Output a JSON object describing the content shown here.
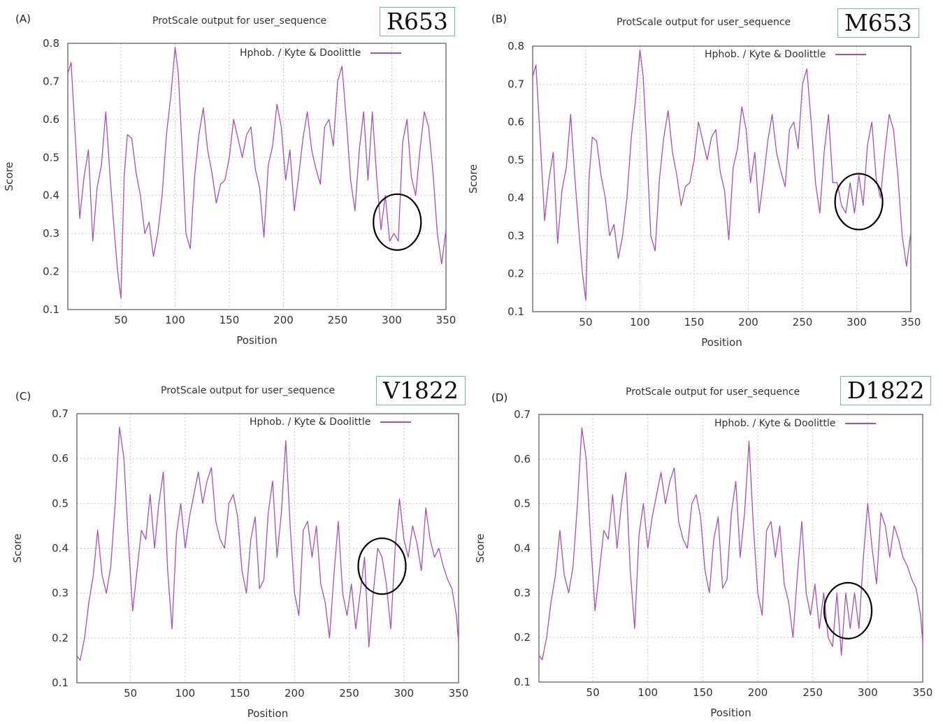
{
  "colors": {
    "series": "#a64fbd",
    "grid": "#c9c9c9",
    "circle": "#000000",
    "box_border": "#7fb0c8"
  },
  "chart_data": [
    {
      "type": "line",
      "panel_label": "(A)",
      "title": "ProtScale output for user_sequence",
      "variant": "R653",
      "xlabel": "Position",
      "ylabel": "Score",
      "xlim": [
        1,
        350
      ],
      "ylim": [
        0.1,
        0.8
      ],
      "xticks": [
        50,
        100,
        150,
        200,
        250,
        300,
        350
      ],
      "yticks": [
        0.1,
        0.2,
        0.3,
        0.4,
        0.5,
        0.6,
        0.7,
        0.8
      ],
      "grid": true,
      "legend_position": "top-right",
      "highlight_circle": {
        "x": 305,
        "y": 0.33
      },
      "series": [
        {
          "name": "Hphob. / Kyte & Doolittle",
          "x": [
            1,
            4,
            8,
            12,
            16,
            20,
            24,
            28,
            32,
            36,
            40,
            44,
            47,
            50,
            53,
            56,
            60,
            64,
            68,
            72,
            76,
            80,
            84,
            88,
            92,
            96,
            100,
            103,
            106,
            110,
            114,
            118,
            122,
            126,
            130,
            134,
            138,
            142,
            146,
            150,
            154,
            158,
            162,
            166,
            170,
            174,
            178,
            182,
            186,
            190,
            194,
            198,
            202,
            206,
            210,
            214,
            218,
            222,
            226,
            230,
            234,
            238,
            242,
            246,
            250,
            254,
            258,
            262,
            266,
            270,
            274,
            278,
            282,
            286,
            290,
            294,
            298,
            302,
            306,
            310,
            314,
            318,
            322,
            326,
            330,
            334,
            338,
            342,
            346,
            350
          ],
          "values": [
            0.72,
            0.75,
            0.55,
            0.34,
            0.45,
            0.52,
            0.28,
            0.42,
            0.48,
            0.62,
            0.45,
            0.3,
            0.2,
            0.13,
            0.45,
            0.56,
            0.55,
            0.46,
            0.4,
            0.3,
            0.33,
            0.24,
            0.3,
            0.4,
            0.56,
            0.66,
            0.79,
            0.72,
            0.55,
            0.3,
            0.26,
            0.45,
            0.56,
            0.63,
            0.52,
            0.46,
            0.38,
            0.43,
            0.44,
            0.5,
            0.6,
            0.55,
            0.5,
            0.56,
            0.58,
            0.47,
            0.42,
            0.29,
            0.48,
            0.53,
            0.64,
            0.58,
            0.44,
            0.52,
            0.36,
            0.45,
            0.55,
            0.62,
            0.52,
            0.47,
            0.43,
            0.58,
            0.6,
            0.53,
            0.7,
            0.74,
            0.6,
            0.44,
            0.36,
            0.52,
            0.62,
            0.44,
            0.62,
            0.45,
            0.31,
            0.4,
            0.28,
            0.3,
            0.28,
            0.54,
            0.6,
            0.45,
            0.4,
            0.52,
            0.62,
            0.58,
            0.46,
            0.3,
            0.22,
            0.31
          ]
        }
      ]
    },
    {
      "type": "line",
      "panel_label": "(B)",
      "title": "ProtScale output for user_sequence",
      "variant": "M653",
      "xlabel": "Position",
      "ylabel": "Score",
      "xlim": [
        1,
        350
      ],
      "ylim": [
        0.1,
        0.8
      ],
      "xticks": [
        50,
        100,
        150,
        200,
        250,
        300,
        350
      ],
      "yticks": [
        0.1,
        0.2,
        0.3,
        0.4,
        0.5,
        0.6,
        0.7,
        0.8
      ],
      "grid": true,
      "legend_position": "top-right",
      "highlight_circle": {
        "x": 302,
        "y": 0.39
      },
      "series": [
        {
          "name": "Hphob. / Kyte & Doolittle",
          "x": [
            1,
            4,
            8,
            12,
            16,
            20,
            24,
            28,
            32,
            36,
            40,
            44,
            47,
            50,
            53,
            56,
            60,
            64,
            68,
            72,
            76,
            80,
            84,
            88,
            92,
            96,
            100,
            103,
            106,
            110,
            114,
            118,
            122,
            126,
            130,
            134,
            138,
            142,
            146,
            150,
            154,
            158,
            162,
            166,
            170,
            174,
            178,
            182,
            186,
            190,
            194,
            198,
            202,
            206,
            210,
            214,
            218,
            222,
            226,
            230,
            234,
            238,
            242,
            246,
            250,
            254,
            258,
            262,
            266,
            270,
            274,
            278,
            282,
            286,
            290,
            294,
            298,
            302,
            306,
            310,
            314,
            318,
            322,
            326,
            330,
            334,
            338,
            342,
            346,
            350
          ],
          "values": [
            0.72,
            0.75,
            0.55,
            0.34,
            0.45,
            0.52,
            0.28,
            0.42,
            0.48,
            0.62,
            0.45,
            0.3,
            0.2,
            0.13,
            0.45,
            0.56,
            0.55,
            0.46,
            0.4,
            0.3,
            0.33,
            0.24,
            0.3,
            0.4,
            0.56,
            0.66,
            0.79,
            0.72,
            0.55,
            0.3,
            0.26,
            0.45,
            0.56,
            0.63,
            0.52,
            0.46,
            0.38,
            0.43,
            0.44,
            0.5,
            0.6,
            0.55,
            0.5,
            0.56,
            0.58,
            0.47,
            0.42,
            0.29,
            0.48,
            0.53,
            0.64,
            0.58,
            0.44,
            0.52,
            0.36,
            0.45,
            0.55,
            0.62,
            0.52,
            0.47,
            0.43,
            0.58,
            0.6,
            0.53,
            0.7,
            0.74,
            0.6,
            0.44,
            0.36,
            0.52,
            0.62,
            0.44,
            0.44,
            0.38,
            0.36,
            0.44,
            0.36,
            0.46,
            0.38,
            0.54,
            0.6,
            0.45,
            0.4,
            0.52,
            0.62,
            0.58,
            0.46,
            0.3,
            0.22,
            0.31
          ]
        }
      ]
    },
    {
      "type": "line",
      "panel_label": "(C)",
      "title": "ProtScale output for user_sequence",
      "variant": "V1822",
      "xlabel": "Position",
      "ylabel": "Score",
      "xlim": [
        1,
        350
      ],
      "ylim": [
        0.1,
        0.7
      ],
      "xticks": [
        50,
        100,
        150,
        200,
        250,
        300,
        350
      ],
      "yticks": [
        0.1,
        0.2,
        0.3,
        0.4,
        0.5,
        0.6,
        0.7
      ],
      "grid": true,
      "legend_position": "top-right",
      "highlight_circle": {
        "x": 280,
        "y": 0.36
      },
      "series": [
        {
          "name": "Hphob. / Kyte & Doolittle",
          "x": [
            1,
            4,
            8,
            12,
            16,
            20,
            24,
            28,
            32,
            36,
            40,
            44,
            48,
            52,
            56,
            60,
            64,
            68,
            72,
            76,
            80,
            84,
            88,
            92,
            96,
            100,
            104,
            108,
            112,
            116,
            120,
            124,
            128,
            132,
            136,
            140,
            144,
            148,
            152,
            156,
            160,
            164,
            168,
            172,
            176,
            180,
            184,
            188,
            192,
            196,
            200,
            204,
            208,
            212,
            216,
            220,
            224,
            228,
            232,
            236,
            240,
            244,
            248,
            252,
            256,
            260,
            264,
            268,
            272,
            276,
            280,
            284,
            288,
            292,
            296,
            300,
            304,
            308,
            312,
            316,
            320,
            324,
            328,
            332,
            336,
            340,
            344,
            348,
            350
          ],
          "values": [
            0.16,
            0.15,
            0.2,
            0.28,
            0.34,
            0.44,
            0.34,
            0.3,
            0.36,
            0.5,
            0.67,
            0.6,
            0.42,
            0.26,
            0.35,
            0.44,
            0.42,
            0.52,
            0.4,
            0.5,
            0.57,
            0.35,
            0.22,
            0.43,
            0.5,
            0.4,
            0.47,
            0.52,
            0.57,
            0.5,
            0.55,
            0.58,
            0.46,
            0.42,
            0.4,
            0.5,
            0.52,
            0.47,
            0.35,
            0.3,
            0.42,
            0.47,
            0.31,
            0.33,
            0.48,
            0.55,
            0.38,
            0.48,
            0.64,
            0.45,
            0.3,
            0.25,
            0.44,
            0.46,
            0.38,
            0.45,
            0.32,
            0.28,
            0.2,
            0.34,
            0.46,
            0.3,
            0.25,
            0.32,
            0.22,
            0.3,
            0.38,
            0.18,
            0.3,
            0.4,
            0.38,
            0.32,
            0.22,
            0.4,
            0.51,
            0.42,
            0.38,
            0.45,
            0.41,
            0.35,
            0.49,
            0.42,
            0.38,
            0.4,
            0.36,
            0.33,
            0.31,
            0.25,
            0.19
          ]
        }
      ]
    },
    {
      "type": "line",
      "panel_label": "(D)",
      "title": "ProtScale output for user_sequence",
      "variant": "D1822",
      "xlabel": "Position",
      "ylabel": "Score",
      "xlim": [
        1,
        350
      ],
      "ylim": [
        0.1,
        0.7
      ],
      "xticks": [
        50,
        100,
        150,
        200,
        250,
        300,
        350
      ],
      "yticks": [
        0.1,
        0.2,
        0.3,
        0.4,
        0.5,
        0.6,
        0.7
      ],
      "grid": true,
      "legend_position": "top-right",
      "highlight_circle": {
        "x": 282,
        "y": 0.26
      },
      "series": [
        {
          "name": "Hphob. / Kyte & Doolittle",
          "x": [
            1,
            4,
            8,
            12,
            16,
            20,
            24,
            28,
            32,
            36,
            40,
            44,
            48,
            52,
            56,
            60,
            64,
            68,
            72,
            76,
            80,
            84,
            88,
            92,
            96,
            100,
            104,
            108,
            112,
            116,
            120,
            124,
            128,
            132,
            136,
            140,
            144,
            148,
            152,
            156,
            160,
            164,
            168,
            172,
            176,
            180,
            184,
            188,
            192,
            196,
            200,
            204,
            208,
            212,
            216,
            220,
            224,
            228,
            232,
            236,
            240,
            244,
            248,
            252,
            256,
            260,
            264,
            268,
            272,
            276,
            280,
            284,
            288,
            292,
            296,
            300,
            304,
            308,
            312,
            316,
            320,
            324,
            328,
            332,
            336,
            340,
            344,
            348,
            350
          ],
          "values": [
            0.16,
            0.15,
            0.2,
            0.28,
            0.34,
            0.44,
            0.34,
            0.3,
            0.36,
            0.5,
            0.67,
            0.6,
            0.42,
            0.26,
            0.35,
            0.44,
            0.42,
            0.52,
            0.4,
            0.5,
            0.57,
            0.35,
            0.22,
            0.43,
            0.5,
            0.4,
            0.47,
            0.52,
            0.57,
            0.5,
            0.55,
            0.58,
            0.46,
            0.42,
            0.4,
            0.5,
            0.52,
            0.47,
            0.35,
            0.3,
            0.42,
            0.47,
            0.31,
            0.33,
            0.48,
            0.55,
            0.38,
            0.48,
            0.64,
            0.45,
            0.3,
            0.25,
            0.44,
            0.46,
            0.38,
            0.45,
            0.32,
            0.28,
            0.2,
            0.34,
            0.46,
            0.3,
            0.25,
            0.32,
            0.22,
            0.3,
            0.2,
            0.18,
            0.3,
            0.16,
            0.3,
            0.22,
            0.3,
            0.22,
            0.38,
            0.5,
            0.4,
            0.32,
            0.48,
            0.45,
            0.38,
            0.45,
            0.42,
            0.38,
            0.36,
            0.33,
            0.31,
            0.25,
            0.19
          ]
        }
      ]
    }
  ]
}
